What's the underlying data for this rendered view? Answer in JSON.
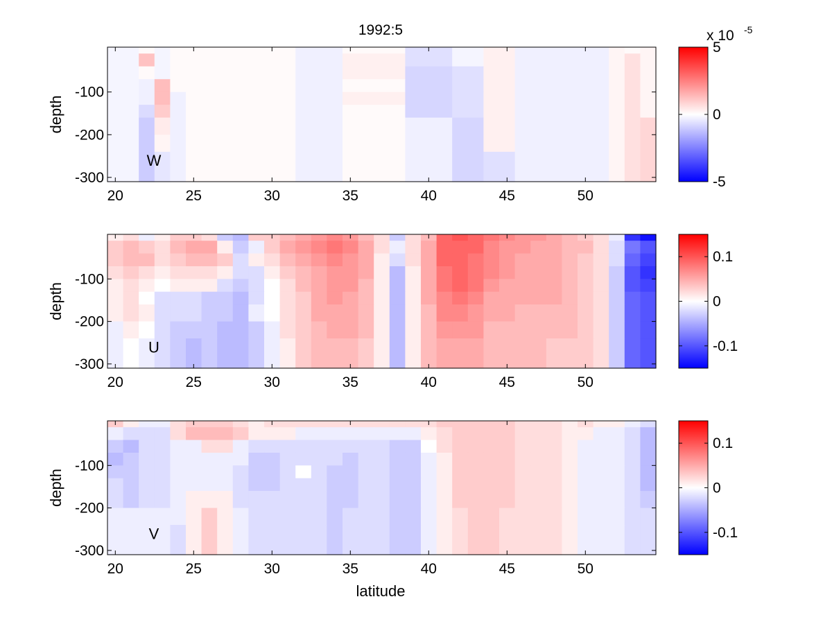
{
  "chart_data": [
    {
      "type": "heatmap",
      "title": "1992:5",
      "panel_label": "W",
      "xlabel": "",
      "ylabel": "depth",
      "xlim": [
        19.5,
        54.5
      ],
      "ylim": [
        -310,
        5
      ],
      "xticks": [
        20,
        25,
        30,
        35,
        40,
        45,
        50
      ],
      "yticks": [
        -100,
        -200,
        -300
      ],
      "colorbar": {
        "min": -5,
        "max": 5,
        "ticks": [
          5,
          0,
          -5
        ],
        "exponent_label": "x 10",
        "exponent": "-5"
      },
      "colormap": [
        "#0000ff",
        "#ffffff",
        "#ff0000"
      ],
      "x_edges": [
        19.5,
        21.5,
        22.5,
        23.5,
        24.5,
        31.5,
        34.5,
        38.5,
        41.5,
        43.5,
        45.5,
        51.5,
        52.5,
        53.5,
        54.5
      ],
      "depth_edges": [
        5,
        -10,
        -40,
        -70,
        -100,
        -130,
        -160,
        -200,
        -240,
        -310
      ],
      "cells": [
        [
          -0.2,
          0.1,
          -0.2,
          0.1,
          0.1,
          -0.3,
          0.1,
          -0.6,
          -0.2,
          0.3,
          -0.3,
          0.2,
          0.1,
          0.2
        ],
        [
          -0.2,
          1.2,
          -0.2,
          0.1,
          0.1,
          -0.3,
          0.3,
          -0.6,
          -0.2,
          0.3,
          -0.3,
          0.2,
          0.6,
          0.2
        ],
        [
          -0.2,
          0.1,
          -0.2,
          0.1,
          0.1,
          -0.3,
          0.3,
          -0.8,
          -0.6,
          0.3,
          -0.3,
          0.2,
          0.6,
          0.2
        ],
        [
          -0.2,
          -0.3,
          1.3,
          0.1,
          0.1,
          -0.3,
          0.1,
          -0.8,
          -0.6,
          0.3,
          -0.3,
          0.2,
          0.6,
          0.2
        ],
        [
          -0.2,
          -0.3,
          1.3,
          -0.3,
          0.1,
          -0.3,
          0.3,
          -0.8,
          -0.6,
          0.3,
          -0.3,
          0.2,
          0.6,
          0.2
        ],
        [
          -0.2,
          -0.7,
          1.0,
          -0.3,
          0.1,
          -0.3,
          0.1,
          -0.8,
          -0.6,
          0.3,
          -0.3,
          0.2,
          0.6,
          0.2
        ],
        [
          -0.2,
          -1.0,
          0.4,
          -0.3,
          0.1,
          -0.3,
          0.1,
          -0.3,
          -0.8,
          0.3,
          -0.3,
          0.2,
          0.6,
          0.8
        ],
        [
          -0.2,
          -1.0,
          0.2,
          -0.3,
          0.1,
          -0.3,
          0.1,
          -0.3,
          -0.8,
          0.3,
          -0.3,
          0.2,
          0.6,
          0.8
        ],
        [
          -0.2,
          -1.0,
          -0.5,
          -0.3,
          0.1,
          -0.3,
          0.1,
          -0.3,
          -0.8,
          -0.6,
          -0.3,
          0.2,
          0.6,
          0.8
        ]
      ]
    },
    {
      "type": "heatmap",
      "title": "",
      "panel_label": "U",
      "xlabel": "",
      "ylabel": "depth",
      "xlim": [
        19.5,
        54.5
      ],
      "ylim": [
        -310,
        5
      ],
      "xticks": [
        20,
        25,
        30,
        35,
        40,
        45,
        50
      ],
      "yticks": [
        -100,
        -200,
        -300
      ],
      "colorbar": {
        "min": -0.15,
        "max": 0.15,
        "ticks": [
          0.1,
          0,
          -0.1
        ]
      },
      "colormap": [
        "#0000ff",
        "#ffffff",
        "#ff0000"
      ],
      "x_edges": [
        19.5,
        20.5,
        21.5,
        22.5,
        23.5,
        24.5,
        25.5,
        26.5,
        27.5,
        28.5,
        29.5,
        30.5,
        31.5,
        32.5,
        33.5,
        34.5,
        35.5,
        36.5,
        37.5,
        38.5,
        39.5,
        40.5,
        41.5,
        42.5,
        43.5,
        44.5,
        45.5,
        46.5,
        47.5,
        48.5,
        49.5,
        50.5,
        51.5,
        52.5,
        53.5,
        54.5
      ],
      "depth_edges": [
        5,
        -10,
        -40,
        -70,
        -100,
        -130,
        -160,
        -200,
        -240,
        -310
      ],
      "cells": [
        [
          0.01,
          0.02,
          -0.01,
          0.01,
          0.03,
          0.03,
          0.02,
          -0.03,
          -0.04,
          0.03,
          0.03,
          0.04,
          0.05,
          0.06,
          0.07,
          0.06,
          0.04,
          0.02,
          -0.03,
          0.02,
          0.04,
          0.09,
          0.1,
          0.09,
          0.08,
          0.07,
          0.06,
          0.06,
          0.05,
          0.04,
          0.03,
          0.02,
          -0.01,
          -0.12,
          -0.14
        ],
        [
          0.03,
          0.04,
          0.03,
          0.02,
          0.04,
          0.05,
          0.05,
          0.01,
          -0.03,
          -0.01,
          0.03,
          0.05,
          0.06,
          0.07,
          0.08,
          0.07,
          0.05,
          0.02,
          -0.01,
          0.02,
          0.05,
          0.09,
          0.09,
          0.09,
          0.07,
          0.06,
          0.06,
          0.05,
          0.05,
          0.04,
          0.04,
          0.02,
          -0.02,
          -0.08,
          -0.1
        ],
        [
          0.03,
          0.04,
          0.04,
          0.02,
          0.03,
          0.04,
          0.04,
          0.03,
          -0.02,
          0.01,
          0.02,
          0.04,
          0.05,
          0.06,
          0.07,
          0.06,
          0.05,
          0.01,
          -0.02,
          0.02,
          0.05,
          0.09,
          0.09,
          0.08,
          0.07,
          0.06,
          0.05,
          0.05,
          0.05,
          0.04,
          0.03,
          0.02,
          -0.02,
          -0.09,
          -0.11
        ],
        [
          0.02,
          0.03,
          0.02,
          0.01,
          0.02,
          0.02,
          0.02,
          0.01,
          -0.02,
          -0.02,
          0.01,
          0.03,
          0.04,
          0.05,
          0.06,
          0.06,
          0.05,
          0.01,
          -0.04,
          0.01,
          0.05,
          0.08,
          0.09,
          0.08,
          0.07,
          0.06,
          0.05,
          0.05,
          0.05,
          0.04,
          0.03,
          0.02,
          -0.03,
          -0.1,
          -0.12
        ],
        [
          0.01,
          0.02,
          0.01,
          0.0,
          0.01,
          0.01,
          0.01,
          -0.02,
          -0.03,
          -0.02,
          0.0,
          0.02,
          0.04,
          0.05,
          0.06,
          0.06,
          0.04,
          0.01,
          -0.04,
          0.01,
          0.05,
          0.08,
          0.09,
          0.08,
          0.06,
          0.05,
          0.05,
          0.05,
          0.05,
          0.04,
          0.03,
          0.02,
          -0.03,
          -0.1,
          -0.11
        ],
        [
          0.01,
          0.02,
          0.0,
          -0.02,
          -0.02,
          -0.02,
          -0.03,
          -0.03,
          -0.04,
          -0.02,
          0.0,
          0.02,
          0.03,
          0.05,
          0.06,
          0.05,
          0.04,
          0.01,
          -0.04,
          0.01,
          0.05,
          0.07,
          0.08,
          0.07,
          0.05,
          0.05,
          0.05,
          0.05,
          0.05,
          0.04,
          0.03,
          0.02,
          -0.03,
          -0.09,
          -0.1
        ],
        [
          0.01,
          0.02,
          0.01,
          -0.02,
          -0.02,
          -0.02,
          -0.03,
          -0.03,
          -0.04,
          -0.01,
          0.0,
          0.02,
          0.03,
          0.05,
          0.05,
          0.05,
          0.04,
          0.01,
          -0.04,
          0.01,
          0.04,
          0.07,
          0.07,
          0.06,
          0.05,
          0.05,
          0.04,
          0.04,
          0.04,
          0.04,
          0.03,
          0.02,
          -0.03,
          -0.09,
          -0.1
        ],
        [
          -0.01,
          0.01,
          0.0,
          -0.02,
          -0.03,
          -0.03,
          -0.03,
          -0.04,
          -0.04,
          -0.03,
          -0.01,
          0.02,
          0.03,
          0.04,
          0.05,
          0.05,
          0.04,
          0.01,
          -0.04,
          0.01,
          0.04,
          0.06,
          0.06,
          0.06,
          0.04,
          0.04,
          0.04,
          0.04,
          0.04,
          0.04,
          0.03,
          0.02,
          -0.03,
          -0.09,
          -0.1
        ],
        [
          -0.01,
          0.0,
          -0.01,
          -0.02,
          -0.03,
          -0.04,
          -0.03,
          -0.04,
          -0.04,
          -0.03,
          -0.01,
          0.01,
          0.03,
          0.04,
          0.04,
          0.04,
          0.03,
          0.01,
          -0.04,
          0.01,
          0.04,
          0.05,
          0.05,
          0.05,
          0.04,
          0.04,
          0.04,
          0.04,
          0.03,
          0.03,
          0.03,
          0.02,
          -0.03,
          -0.09,
          -0.1
        ]
      ]
    },
    {
      "type": "heatmap",
      "title": "",
      "panel_label": "V",
      "xlabel": "latitude",
      "ylabel": "depth",
      "xlim": [
        19.5,
        54.5
      ],
      "ylim": [
        -310,
        5
      ],
      "xticks": [
        20,
        25,
        30,
        35,
        40,
        45,
        50
      ],
      "yticks": [
        -100,
        -200,
        -300
      ],
      "colorbar": {
        "min": -0.15,
        "max": 0.15,
        "ticks": [
          0.1,
          0,
          -0.1
        ]
      },
      "colormap": [
        "#0000ff",
        "#ffffff",
        "#ff0000"
      ],
      "x_edges": [
        19.5,
        20.5,
        21.5,
        22.5,
        23.5,
        24.5,
        25.5,
        26.5,
        27.5,
        28.5,
        29.5,
        30.5,
        31.5,
        32.5,
        33.5,
        34.5,
        35.5,
        36.5,
        37.5,
        38.5,
        39.5,
        40.5,
        41.5,
        42.5,
        43.5,
        44.5,
        45.5,
        46.5,
        47.5,
        48.5,
        49.5,
        50.5,
        51.5,
        52.5,
        53.5,
        54.5
      ],
      "depth_edges": [
        5,
        -10,
        -40,
        -70,
        -100,
        -130,
        -160,
        -200,
        -240,
        -310
      ],
      "cells": [
        [
          0.03,
          0.01,
          -0.01,
          -0.01,
          0.02,
          0.03,
          0.03,
          0.03,
          0.02,
          0.01,
          0.02,
          0.02,
          0.02,
          0.02,
          0.02,
          0.02,
          0.02,
          0.02,
          0.02,
          0.02,
          0.02,
          0.03,
          0.03,
          0.03,
          0.03,
          0.03,
          0.02,
          0.02,
          0.02,
          0.01,
          0.02,
          0.01,
          0.01,
          -0.01,
          -0.02
        ],
        [
          -0.01,
          -0.02,
          -0.02,
          -0.02,
          0.02,
          0.04,
          0.04,
          0.04,
          0.03,
          0.01,
          0.01,
          0.01,
          -0.01,
          -0.01,
          -0.01,
          -0.01,
          -0.01,
          -0.01,
          -0.01,
          -0.01,
          0.01,
          0.02,
          0.03,
          0.03,
          0.03,
          0.03,
          0.02,
          0.02,
          0.02,
          0.01,
          0.01,
          -0.01,
          -0.01,
          -0.02,
          -0.04
        ],
        [
          -0.03,
          -0.04,
          -0.02,
          -0.02,
          -0.01,
          -0.01,
          0.02,
          0.02,
          -0.01,
          -0.02,
          -0.02,
          -0.02,
          -0.02,
          -0.02,
          -0.02,
          -0.02,
          -0.02,
          -0.02,
          -0.03,
          -0.03,
          0.0,
          0.02,
          0.03,
          0.03,
          0.03,
          0.03,
          0.02,
          0.02,
          0.02,
          0.01,
          -0.01,
          -0.01,
          -0.01,
          -0.02,
          -0.04
        ],
        [
          -0.04,
          -0.03,
          -0.02,
          -0.02,
          -0.01,
          -0.01,
          -0.01,
          -0.01,
          -0.01,
          -0.03,
          -0.03,
          -0.02,
          -0.02,
          -0.02,
          -0.02,
          -0.03,
          -0.02,
          -0.02,
          -0.03,
          -0.03,
          -0.01,
          0.01,
          0.03,
          0.03,
          0.03,
          0.03,
          0.02,
          0.02,
          0.02,
          0.01,
          -0.01,
          -0.01,
          -0.01,
          -0.02,
          -0.04
        ],
        [
          -0.03,
          -0.03,
          -0.02,
          -0.02,
          -0.01,
          -0.01,
          -0.01,
          -0.01,
          -0.02,
          -0.03,
          -0.03,
          -0.02,
          0.0,
          -0.02,
          -0.03,
          -0.03,
          -0.02,
          -0.02,
          -0.03,
          -0.03,
          -0.01,
          0.01,
          0.03,
          0.03,
          0.03,
          0.03,
          0.02,
          0.02,
          0.02,
          0.01,
          -0.01,
          -0.01,
          -0.01,
          -0.02,
          -0.04
        ],
        [
          -0.02,
          -0.03,
          -0.02,
          -0.02,
          -0.01,
          -0.01,
          -0.01,
          -0.01,
          -0.02,
          -0.03,
          -0.03,
          -0.02,
          -0.02,
          -0.02,
          -0.03,
          -0.03,
          -0.02,
          -0.02,
          -0.03,
          -0.03,
          -0.01,
          0.01,
          0.03,
          0.03,
          0.03,
          0.03,
          0.02,
          0.02,
          0.02,
          0.01,
          -0.01,
          -0.01,
          -0.01,
          -0.02,
          -0.04
        ],
        [
          -0.02,
          -0.03,
          -0.02,
          -0.02,
          -0.01,
          0.01,
          0.01,
          0.01,
          -0.02,
          -0.02,
          -0.02,
          -0.02,
          -0.02,
          -0.02,
          -0.03,
          -0.03,
          -0.02,
          -0.02,
          -0.03,
          -0.03,
          -0.01,
          0.01,
          0.03,
          0.03,
          0.03,
          0.03,
          0.02,
          0.02,
          0.02,
          0.01,
          -0.01,
          -0.01,
          -0.01,
          -0.02,
          -0.03
        ],
        [
          -0.01,
          -0.01,
          -0.01,
          -0.01,
          -0.01,
          0.01,
          0.03,
          0.01,
          -0.01,
          -0.02,
          -0.02,
          -0.02,
          -0.02,
          -0.02,
          -0.03,
          -0.02,
          -0.02,
          -0.02,
          -0.03,
          -0.03,
          -0.01,
          0.01,
          0.02,
          0.03,
          0.03,
          0.02,
          0.02,
          0.02,
          0.02,
          0.01,
          -0.01,
          -0.01,
          -0.01,
          -0.02,
          -0.02
        ],
        [
          -0.01,
          -0.01,
          -0.01,
          -0.01,
          -0.02,
          0.01,
          0.03,
          0.01,
          -0.01,
          -0.02,
          -0.02,
          -0.02,
          -0.02,
          -0.02,
          -0.03,
          -0.02,
          -0.02,
          -0.02,
          -0.03,
          -0.03,
          -0.01,
          0.01,
          0.02,
          0.03,
          0.03,
          0.02,
          0.02,
          0.02,
          0.02,
          0.01,
          -0.01,
          -0.01,
          -0.01,
          -0.02,
          -0.02
        ]
      ]
    }
  ]
}
